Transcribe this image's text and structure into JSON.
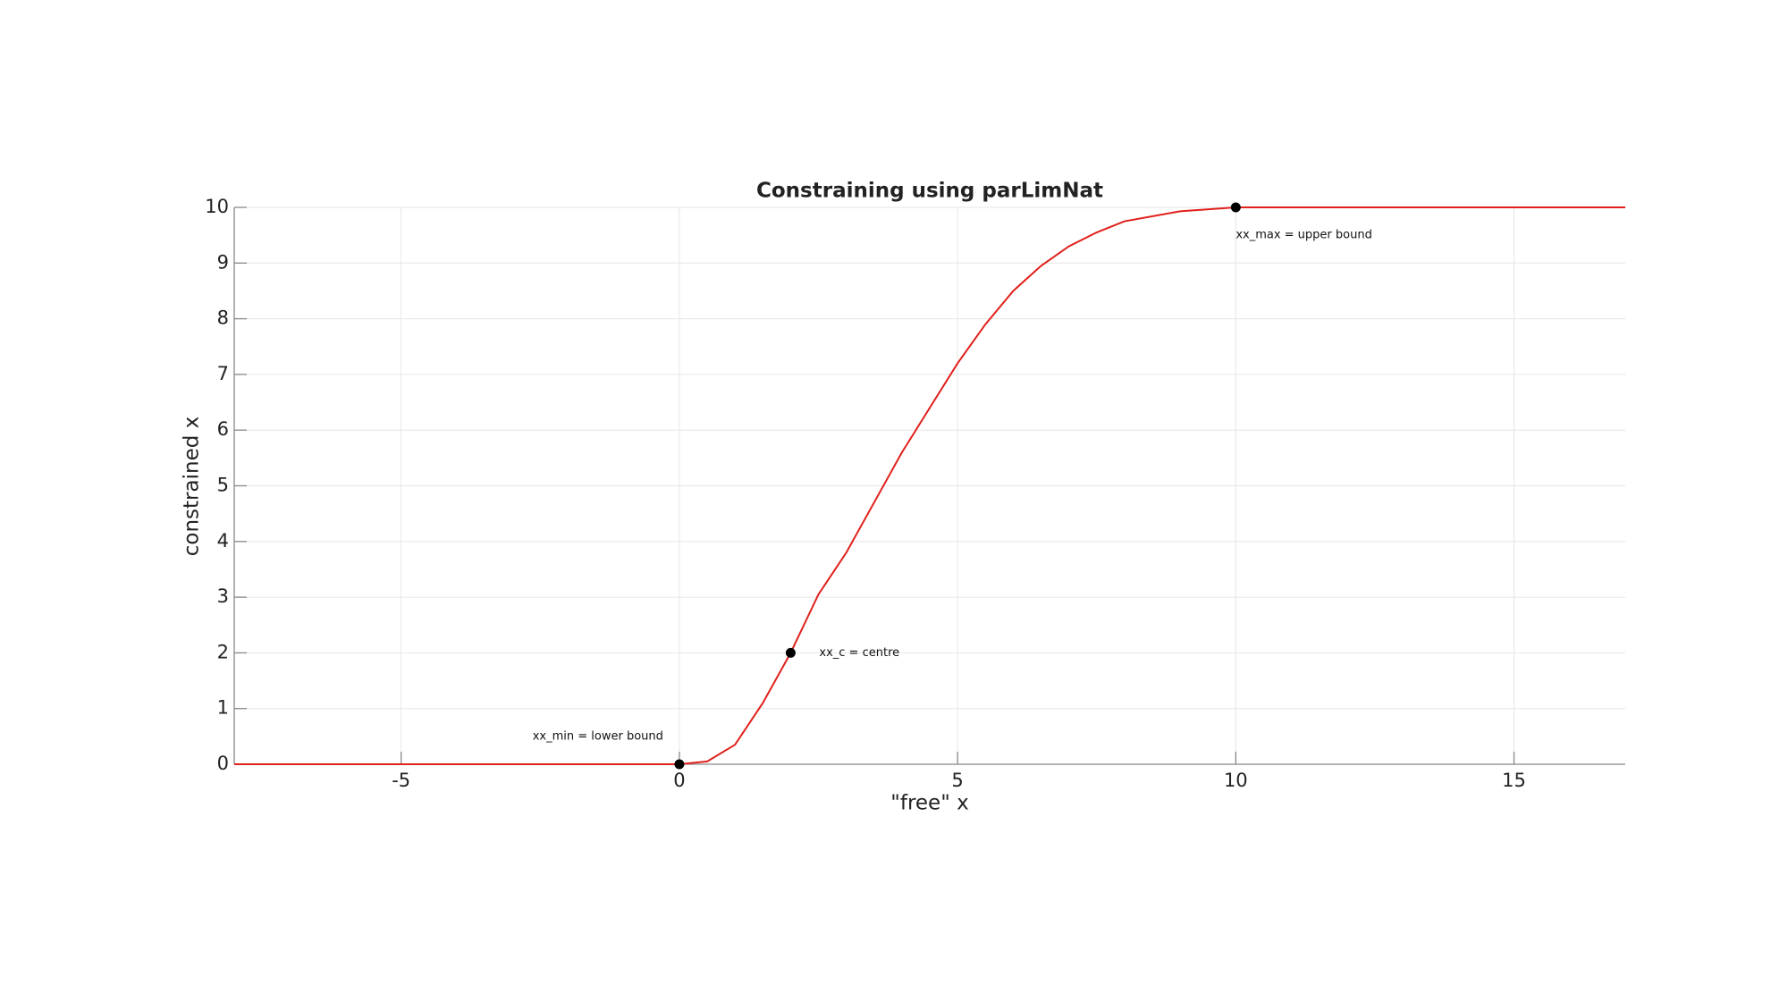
{
  "chart_data": {
    "type": "line",
    "title": "Constraining using parLimNat",
    "xlabel": "\"free\" x",
    "ylabel": "constrained x",
    "x": [
      -8,
      0,
      0.5,
      1,
      1.5,
      2,
      2.5,
      3,
      3.5,
      4,
      4.5,
      5,
      5.5,
      6,
      6.5,
      7,
      7.5,
      8,
      9,
      10,
      17
    ],
    "series": [
      {
        "color": "#e0201b",
        "values": [
          0,
          0,
          0.05,
          0.35,
          1.1,
          2,
          3.05,
          3.8,
          4.7,
          5.6,
          6.4,
          7.2,
          7.9,
          8.5,
          8.95,
          9.3,
          9.55,
          9.75,
          9.93,
          10,
          10
        ]
      }
    ],
    "markers": {
      "color": "#000000",
      "x": [
        0,
        2,
        10
      ],
      "y": [
        0,
        2,
        10
      ]
    },
    "annotations": [
      "xx_min = lower bound",
      "xx_c = centre",
      "xx_max = upper bound"
    ],
    "xlim": [
      -8,
      17
    ],
    "ylim": [
      0,
      10
    ],
    "xticks": [
      -5,
      0,
      5,
      10,
      15
    ],
    "yticks": [
      0,
      1,
      2,
      3,
      4,
      5,
      6,
      7,
      8,
      9,
      10
    ],
    "grid": true
  }
}
